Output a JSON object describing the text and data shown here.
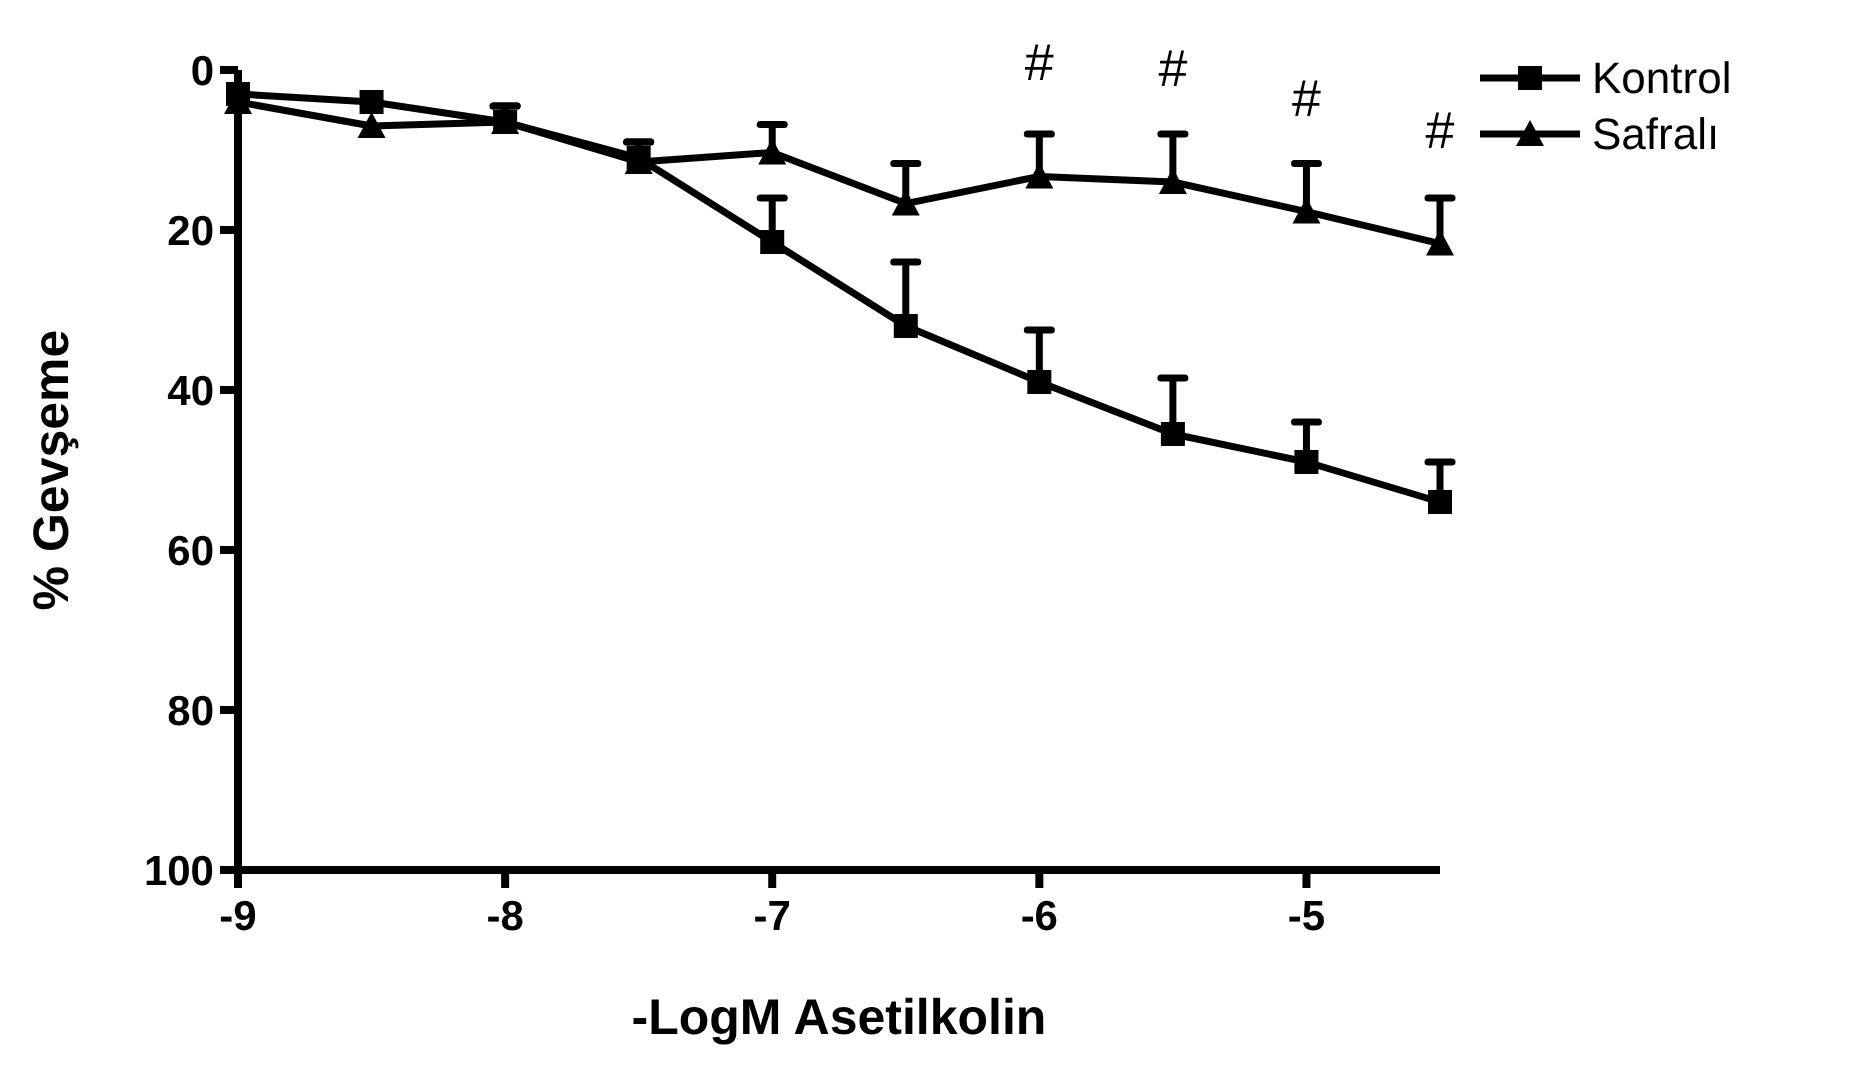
{
  "chart_data": {
    "type": "line",
    "xlabel": "-LogM Asetilkolin",
    "ylabel": "% Gevşeme",
    "x": [
      -9,
      -8.5,
      -8,
      -7.5,
      -7,
      -6.5,
      -6,
      -5.5,
      -5,
      -4.5
    ],
    "xlim": [
      -9,
      -4.5
    ],
    "xticks": [
      -9,
      -8,
      -7,
      -6,
      -5
    ],
    "ylim": [
      100,
      0
    ],
    "yticks": [
      0,
      20,
      40,
      60,
      80,
      100
    ],
    "series": [
      {
        "name": "Kontrol",
        "color": "#000000",
        "marker": "square",
        "values": [
          3,
          4,
          6.5,
          11,
          21.5,
          32,
          39,
          45.5,
          49,
          54
        ],
        "errors": [
          null,
          null,
          [
            4.5,
            6.5
          ],
          [
            9,
            11
          ],
          [
            16,
            21.5
          ],
          [
            24,
            32
          ],
          [
            32.5,
            39
          ],
          [
            38.5,
            45.5
          ],
          [
            44,
            49
          ],
          [
            49,
            54
          ]
        ]
      },
      {
        "name": "Safralı",
        "color": "#000000",
        "marker": "triangle",
        "values": [
          4,
          7,
          6.5,
          11.5,
          10.3,
          16.7,
          13.3,
          14,
          17.7,
          21.7
        ],
        "errors": [
          null,
          null,
          [
            4.5,
            6.5
          ],
          [
            9,
            11.5
          ],
          [
            6.8,
            10.3
          ],
          [
            11.7,
            16.7
          ],
          [
            8,
            13.3
          ],
          [
            8,
            14
          ],
          [
            11.7,
            17.7
          ],
          [
            16,
            21.7
          ]
        ]
      }
    ],
    "annotations": [
      {
        "text": "#",
        "x": -6,
        "y": 13.3
      },
      {
        "text": "#",
        "x": -5.5,
        "y": 14
      },
      {
        "text": "#",
        "x": -5,
        "y": 17.7
      },
      {
        "text": "#",
        "x": -4.5,
        "y": 21.7
      }
    ],
    "legend": "right",
    "grid": false,
    "line_style": "solid"
  }
}
